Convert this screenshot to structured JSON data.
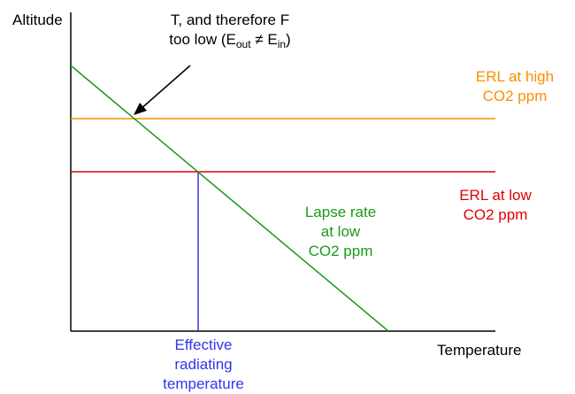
{
  "axes": {
    "y_label": "Altitude",
    "x_label": "Temperature"
  },
  "annotation": {
    "line1": "T, and therefore F",
    "line2_prefix": "too low (E",
    "line2_sub1": "out",
    "line2_mid": " ≠ E",
    "line2_sub2": "in",
    "line2_suffix": ")"
  },
  "erl_high": {
    "line1": "ERL at high",
    "line2": "CO2 ppm",
    "color": "#ff8c00"
  },
  "erl_low": {
    "line1": "ERL at low",
    "line2": "CO2 ppm",
    "color": "#e00000"
  },
  "lapse_rate": {
    "line1": "Lapse rate",
    "line2": "at low",
    "line3": "CO2 ppm",
    "color": "#1a9a1a"
  },
  "effective_temp": {
    "line1": "Effective",
    "line2": "radiating",
    "line3": "temperature",
    "color": "#3333ee"
  }
}
